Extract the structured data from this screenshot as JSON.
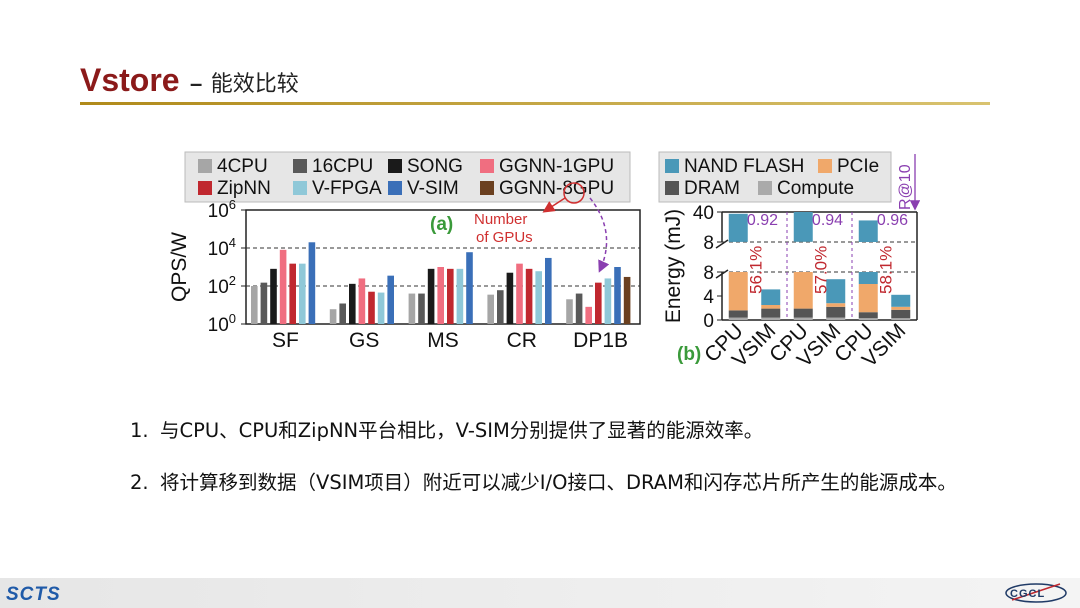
{
  "slide": {
    "title": "Vstore",
    "dash": "–",
    "subtitle": "能效比较"
  },
  "bullets": [
    {
      "num": "1.",
      "text": "与CPU、CPU和ZipNN平台相比，V-SIM分别提供了显著的能源效率。"
    },
    {
      "num": "2.",
      "text": "将计算移到数据（VSIM项目）附近可以减少I/O接口、DRAM和闪存芯片所产生的能源成本。"
    }
  ],
  "footer": {
    "left_logo": "SCTS",
    "right_logo": "CGCL"
  },
  "colors": {
    "title": "#8b1a1a",
    "4CPU": "#a6a6a6",
    "16CPU": "#595959",
    "SONG": "#1a1a1a",
    "GGNN-1GPU": "#f06e80",
    "ZipNN": "#c0282f",
    "V-FPGA": "#8fc8d8",
    "V-SIM": "#3a6fb8",
    "GGNN-8GPU": "#6b4020",
    "NAND FLASH": "#4a98b8",
    "PCIe": "#f0a86a",
    "DRAM": "#555555",
    "Compute": "#aaaaaa"
  },
  "chart_data": [
    {
      "type": "bar",
      "panel_label": "(a)",
      "ylabel": "QPS/W",
      "yscale": "log",
      "ylim": [
        1,
        1000000
      ],
      "ytick_labels": [
        {
          "base": "10",
          "exp": "0"
        },
        {
          "base": "10",
          "exp": "2"
        },
        {
          "base": "10",
          "exp": "4"
        },
        {
          "base": "10",
          "exp": "6"
        }
      ],
      "yticks": [
        1,
        100,
        10000,
        1000000
      ],
      "categories": [
        "SF",
        "GS",
        "MS",
        "CR",
        "DP1B"
      ],
      "legend": [
        "4CPU",
        "16CPU",
        "SONG",
        "GGNN-1GPU",
        "ZipNN",
        "V-FPGA",
        "V-SIM",
        "GGNN-8GPU"
      ],
      "series": [
        {
          "name": "4CPU",
          "values": [
            100,
            6,
            40,
            35,
            20
          ]
        },
        {
          "name": "16CPU",
          "values": [
            150,
            12,
            40,
            60,
            40
          ]
        },
        {
          "name": "SONG",
          "values": [
            800,
            130,
            800,
            500,
            0
          ]
        },
        {
          "name": "GGNN-1GPU",
          "values": [
            8000,
            250,
            1000,
            1500,
            8
          ]
        },
        {
          "name": "ZipNN",
          "values": [
            1500,
            50,
            800,
            800,
            150
          ]
        },
        {
          "name": "V-FPGA",
          "values": [
            1500,
            45,
            800,
            600,
            250
          ]
        },
        {
          "name": "V-SIM",
          "values": [
            20000,
            350,
            6000,
            3000,
            1000
          ]
        },
        {
          "name": "GGNN-8GPU",
          "values": [
            0,
            0,
            0,
            0,
            300
          ]
        }
      ],
      "annotation": "Number of GPUs"
    },
    {
      "type": "bar",
      "stacked": true,
      "panel_label": "(b)",
      "ylabel": "Energy (mJ)",
      "yaxis_break": true,
      "ytick_labels": [
        "0",
        "4",
        "8",
        "8",
        "40"
      ],
      "categories": [
        "CPU",
        "VSIM",
        "CPU",
        "VSIM",
        "CPU",
        "VSIM"
      ],
      "legend": [
        "NAND FLASH",
        "PCIe",
        "DRAM",
        "Compute"
      ],
      "series": [
        {
          "name": "Compute",
          "values": [
            0.4,
            0.4,
            0.4,
            0.4,
            0.3,
            0.3
          ]
        },
        {
          "name": "DRAM",
          "values": [
            1.2,
            1.5,
            1.5,
            1.8,
            1.0,
            1.4
          ]
        },
        {
          "name": "PCIe",
          "values": [
            6.5,
            0.6,
            6.3,
            0.6,
            4.7,
            0.5
          ]
        },
        {
          "name": "NAND FLASH",
          "values": [
            30,
            2.6,
            40,
            4.0,
            25,
            2.0
          ]
        }
      ],
      "group_ratio_labels": [
        "0.92",
        "0.94",
        "0.96"
      ],
      "saving_labels": [
        "56.1%",
        "57.0%",
        "58.1%"
      ],
      "corner_label": "R@10"
    }
  ]
}
